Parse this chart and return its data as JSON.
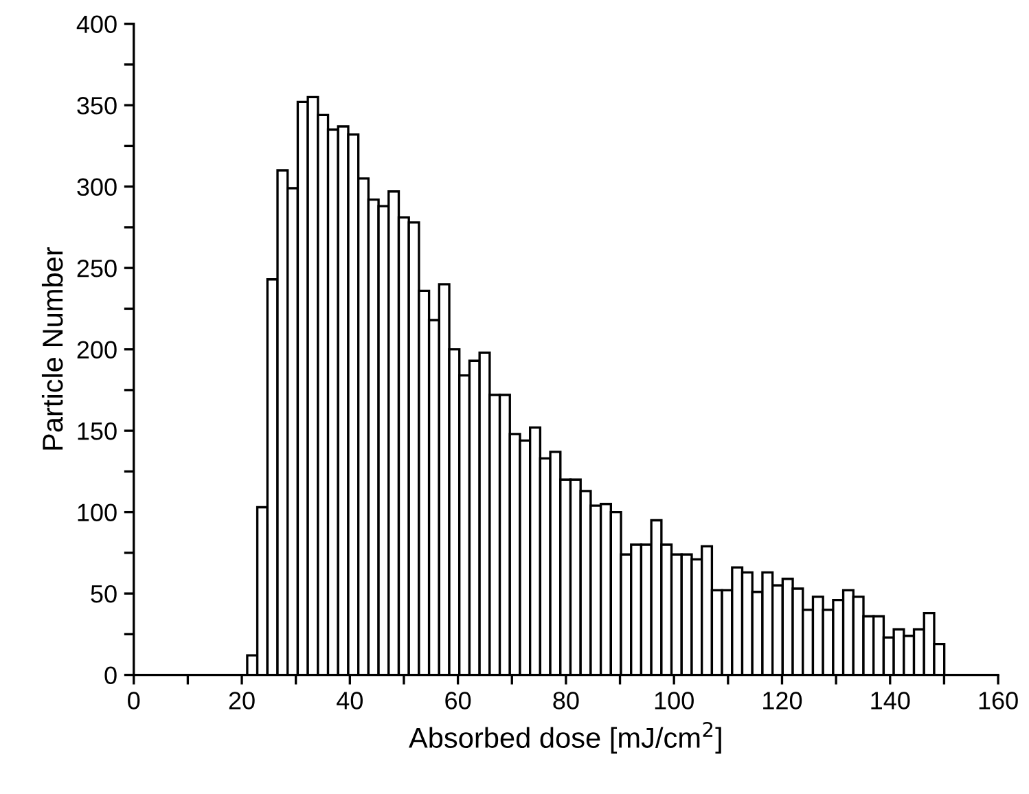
{
  "chart_data": {
    "type": "histogram",
    "xlabel": "Absorbed dose [mJ/cm$^{2}$]",
    "ylabel": "Particle Number",
    "bins": [
      21,
      22.87,
      24.74,
      26.61,
      28.48,
      30.35,
      32.22,
      34.09,
      35.96,
      37.83,
      39.7,
      41.57,
      43.44,
      45.31,
      47.18,
      49.05,
      50.92,
      52.79,
      54.66,
      56.53,
      58.4,
      60.27,
      62.14,
      64.01,
      65.88,
      67.75,
      69.62,
      71.49,
      73.36,
      75.23,
      77.1,
      78.97,
      80.84,
      82.71,
      84.58,
      86.45,
      88.32,
      90.19,
      92.06,
      93.93,
      95.8,
      97.67,
      99.54,
      101.41,
      103.28,
      105.15,
      107.02,
      108.89,
      110.76,
      112.63,
      114.5,
      116.37,
      118.24,
      120.11,
      121.98,
      123.85,
      125.72,
      127.59,
      129.46,
      131.33,
      133.2,
      135.07,
      136.94,
      138.81,
      140.68,
      142.55,
      144.42,
      146.29,
      148.16,
      150.03
    ],
    "values": [
      12,
      103,
      243,
      310,
      299,
      352,
      355,
      344,
      335,
      337,
      332,
      305,
      292,
      288,
      297,
      281,
      278,
      236,
      218,
      240,
      200,
      184,
      193,
      198,
      172,
      172,
      148,
      144,
      152,
      133,
      137,
      120,
      120,
      113,
      104,
      105,
      100,
      74,
      80,
      80,
      95,
      80,
      74,
      74,
      71,
      79,
      52,
      52,
      66,
      63,
      51,
      63,
      55,
      59,
      53,
      40,
      48,
      40,
      46,
      52,
      48,
      36,
      36,
      23,
      28,
      24,
      28,
      38,
      19
    ],
    "color": "#ffffff",
    "xlim": [
      0,
      160
    ],
    "ylim": [
      0,
      400
    ],
    "xticks": [
      0,
      {
        "value": 10,
        "label": null
      },
      20,
      {
        "value": 30,
        "label": null
      },
      40,
      {
        "value": 50,
        "label": null
      },
      60,
      {
        "value": 70,
        "label": null
      },
      80,
      {
        "value": 90,
        "label": null
      },
      100,
      {
        "value": 110,
        "label": null
      },
      120,
      {
        "value": 130,
        "label": null
      },
      140,
      {
        "value": 150,
        "label": null
      },
      160
    ],
    "yticks": [
      0,
      {
        "value": 25,
        "label": null
      },
      50,
      {
        "value": 75,
        "label": null
      },
      100,
      {
        "value": 125,
        "label": null
      },
      150,
      {
        "value": 175,
        "label": null
      },
      200,
      {
        "value": 225,
        "label": null
      },
      250,
      {
        "value": 275,
        "label": null
      },
      300,
      {
        "value": 325,
        "label": null
      },
      350,
      {
        "value": 375,
        "label": null
      },
      400
    ],
    "grid": false,
    "legend": false
  }
}
